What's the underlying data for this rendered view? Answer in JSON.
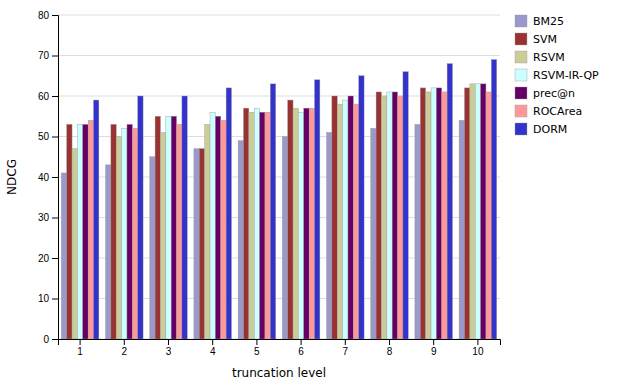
{
  "chart_data": {
    "type": "bar",
    "xlabel": "truncation level",
    "ylabel": "NDCG",
    "categories": [
      1,
      2,
      3,
      4,
      5,
      6,
      7,
      8,
      9,
      10
    ],
    "series": [
      {
        "name": "BM25",
        "color": "#9999cc",
        "values": [
          41,
          43,
          45,
          47,
          49,
          50,
          51,
          52,
          53,
          54
        ]
      },
      {
        "name": "SVM",
        "color": "#993333",
        "values": [
          53,
          53,
          55,
          47,
          57,
          59,
          60,
          61,
          62,
          62
        ]
      },
      {
        "name": "RSVM",
        "color": "#cccc99",
        "values": [
          47,
          50,
          51,
          53,
          56,
          57,
          58,
          60,
          61,
          63
        ]
      },
      {
        "name": "RSVM-IR-QP",
        "color": "#ccffff",
        "values": [
          53,
          52,
          55,
          56,
          57,
          56,
          59,
          61,
          62,
          63
        ]
      },
      {
        "name": "prec@n",
        "color": "#660066",
        "values": [
          53,
          53,
          55,
          55,
          56,
          57,
          60,
          61,
          62,
          63
        ]
      },
      {
        "name": "ROCArea",
        "color": "#ff9999",
        "values": [
          54,
          52,
          53,
          54,
          56,
          57,
          58,
          60,
          61,
          61
        ]
      },
      {
        "name": "DORM",
        "color": "#3333cc",
        "values": [
          59,
          60,
          60,
          62,
          63,
          64,
          65,
          66,
          68,
          69
        ]
      }
    ],
    "ylim": [
      0,
      80
    ],
    "yticks": [
      0,
      10,
      20,
      30,
      40,
      50,
      60,
      70,
      80
    ],
    "grid": true,
    "legend": "right"
  }
}
